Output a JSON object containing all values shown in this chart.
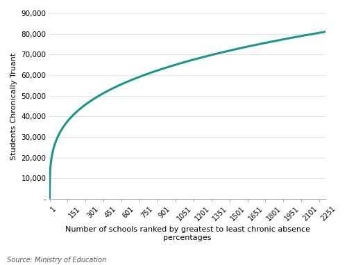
{
  "x_ticks": [
    1,
    151,
    301,
    451,
    601,
    751,
    901,
    1051,
    1201,
    1351,
    1501,
    1651,
    1801,
    1951,
    2101,
    2251
  ],
  "x_max": 2300,
  "y_ticks": [
    0,
    10000,
    20000,
    30000,
    40000,
    50000,
    60000,
    70000,
    80000,
    90000
  ],
  "y_tick_labels": [
    "-",
    "10,000",
    "20,000",
    "30,000",
    "40,000",
    "50,000",
    "60,000",
    "70,000",
    "80,000",
    "90,000"
  ],
  "y_max": 90000,
  "line_color": "#1a9688",
  "line_width": 2.2,
  "xlabel_line1": "Number of schools ranked by greatest to least chronic absence",
  "xlabel_line2": "percentages",
  "ylabel": "Students Chronically Truant",
  "source_text": "Source: Ministry of Education",
  "background_color": "#ffffff",
  "total_students": 81000,
  "total_schools": 2251,
  "curve_power": 0.28
}
